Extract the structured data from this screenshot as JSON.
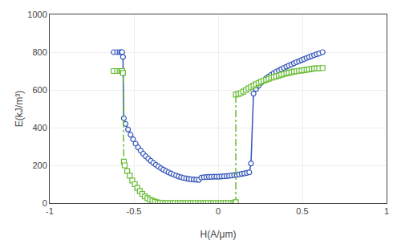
{
  "chart_data": {
    "type": "line",
    "xlabel": "H(A/μm)",
    "ylabel": "E(kJ/m³)",
    "xlim": [
      -1,
      1
    ],
    "ylim": [
      0,
      1000
    ],
    "xticks": [
      -1,
      -0.5,
      0,
      0.5,
      1
    ],
    "yticks": [
      0,
      200,
      400,
      600,
      800,
      1000
    ],
    "grid": true,
    "series": [
      {
        "color": "#3355bb",
        "marker": "circle",
        "line_style": "solid",
        "x": [
          -0.62,
          -0.6,
          -0.585,
          -0.575,
          -0.57,
          -0.565,
          -0.56,
          -0.55,
          -0.535,
          -0.52,
          -0.505,
          -0.49,
          -0.475,
          -0.46,
          -0.445,
          -0.43,
          -0.415,
          -0.4,
          -0.385,
          -0.37,
          -0.355,
          -0.34,
          -0.325,
          -0.31,
          -0.295,
          -0.28,
          -0.265,
          -0.25,
          -0.235,
          -0.22,
          -0.205,
          -0.19,
          -0.175,
          -0.16,
          -0.145,
          -0.13,
          -0.115,
          -0.1,
          -0.085,
          -0.07,
          -0.055,
          -0.04,
          -0.025,
          -0.01,
          0.005,
          0.02,
          0.035,
          0.05,
          0.065,
          0.08,
          0.095,
          0.11,
          0.125,
          0.14,
          0.155,
          0.17,
          0.185,
          0.195,
          0.21,
          0.225,
          0.24,
          0.255,
          0.27,
          0.285,
          0.3,
          0.315,
          0.33,
          0.345,
          0.36,
          0.375,
          0.39,
          0.405,
          0.42,
          0.435,
          0.45,
          0.465,
          0.48,
          0.495,
          0.51,
          0.525,
          0.54,
          0.555,
          0.57,
          0.585,
          0.6,
          0.62
        ],
        "values": [
          800,
          800,
          800,
          800,
          800,
          775,
          450,
          420,
          390,
          362,
          338,
          315,
          295,
          278,
          262,
          248,
          236,
          224,
          213,
          203,
          194,
          185,
          177,
          170,
          163,
          157,
          151,
          146,
          141,
          137,
          133,
          130,
          128,
          126,
          125,
          124,
          123,
          135,
          137,
          138,
          139,
          139,
          140,
          140,
          140,
          141,
          142,
          143,
          144,
          146,
          148,
          150,
          152,
          155,
          157,
          160,
          163,
          210,
          580,
          605,
          622,
          637,
          650,
          661,
          671,
          680,
          689,
          696,
          703,
          710,
          717,
          723,
          729,
          735,
          741,
          747,
          752,
          758,
          763,
          769,
          774,
          779,
          784,
          789,
          793,
          800
        ]
      },
      {
        "color": "#66bb33",
        "marker": "square",
        "line_style": "dashdot",
        "x": [
          -0.62,
          -0.6,
          -0.585,
          -0.575,
          -0.57,
          -0.565,
          -0.56,
          -0.555,
          -0.54,
          -0.525,
          -0.51,
          -0.495,
          -0.48,
          -0.465,
          -0.45,
          -0.435,
          -0.42,
          -0.405,
          -0.39,
          -0.375,
          -0.36,
          -0.345,
          -0.33,
          -0.315,
          -0.3,
          -0.285,
          -0.27,
          -0.255,
          -0.24,
          -0.225,
          -0.21,
          -0.195,
          -0.18,
          -0.165,
          -0.15,
          -0.135,
          -0.12,
          -0.105,
          -0.09,
          -0.075,
          -0.06,
          -0.045,
          -0.03,
          -0.015,
          0.0,
          0.015,
          0.03,
          0.045,
          0.06,
          0.075,
          0.09,
          0.1,
          0.105,
          0.105,
          0.12,
          0.135,
          0.15,
          0.165,
          0.18,
          0.195,
          0.21,
          0.225,
          0.24,
          0.255,
          0.27,
          0.285,
          0.3,
          0.315,
          0.33,
          0.345,
          0.36,
          0.375,
          0.39,
          0.405,
          0.42,
          0.435,
          0.45,
          0.465,
          0.48,
          0.495,
          0.51,
          0.525,
          0.54,
          0.555,
          0.57,
          0.585,
          0.6,
          0.62
        ],
        "values": [
          700,
          700,
          700,
          700,
          700,
          690,
          220,
          200,
          170,
          145,
          120,
          100,
          80,
          63,
          48,
          36,
          26,
          18,
          12,
          7,
          4,
          2,
          1,
          0,
          0,
          0,
          0,
          0,
          0,
          0,
          0,
          0,
          0,
          0,
          0,
          0,
          0,
          0,
          0,
          0,
          0,
          0,
          0,
          0,
          0,
          0,
          0,
          0,
          0,
          0,
          0,
          3,
          5,
          575,
          578,
          583,
          591,
          599,
          608,
          616,
          623,
          630,
          637,
          643,
          649,
          654,
          659,
          664,
          668,
          672,
          676,
          680,
          684,
          688,
          691,
          694,
          697,
          699,
          701,
          703,
          705,
          707,
          709,
          711,
          713,
          714,
          715,
          716
        ]
      }
    ]
  }
}
